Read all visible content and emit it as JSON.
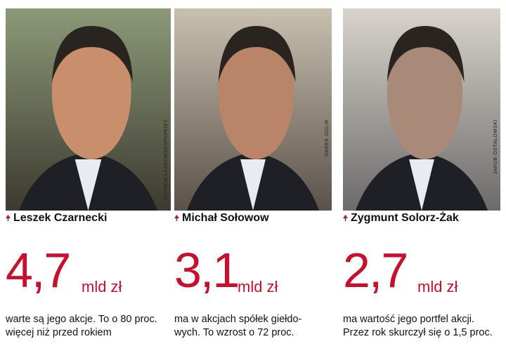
{
  "people": [
    {
      "name": "Leszek Czarnecki",
      "amount": "4,7",
      "unit": "mld zł",
      "credit": "SZYMON ŁASZEWSKI/PARKIET",
      "description": [
        "warte są jego akcje. To o 80 proc.",
        "więcej niż przed rokiem"
      ]
    },
    {
      "name": "Michał Sołowow",
      "amount": "3,1",
      "unit": "mld zł",
      "credit": "DAREK GOLIK",
      "description": [
        "ma w akcjach spółek giełdo-",
        "wych. To wzrost o 72 proc."
      ]
    },
    {
      "name": "Zygmunt Solorz-Żak",
      "amount": "2,7",
      "unit": "mld zł",
      "credit": "JAKUB OSTAŁOWSKI",
      "description": [
        "ma wartość jego portfel akcji.",
        "Przez rok skurczył się o 1,5 proc."
      ]
    }
  ]
}
